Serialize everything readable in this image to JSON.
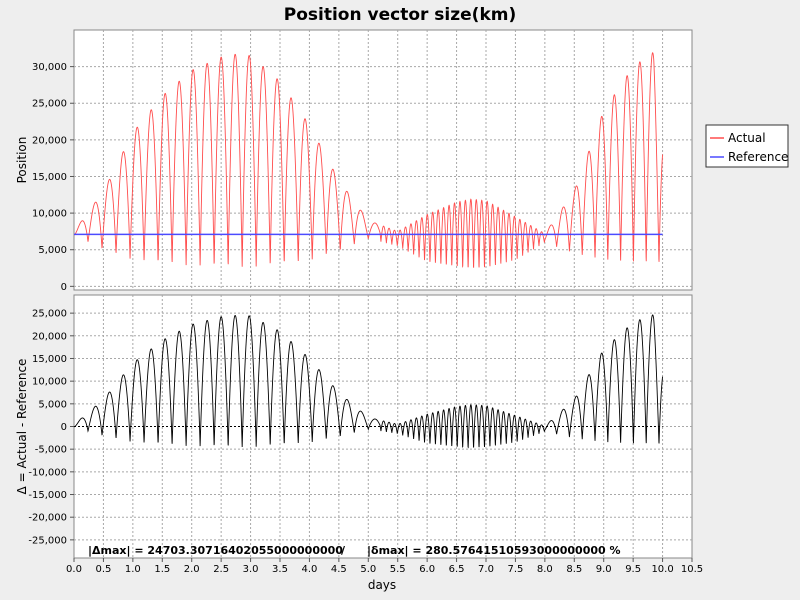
{
  "chart_data": [
    {
      "type": "line",
      "title": "Position vector size(km)",
      "ylabel": "Position",
      "xlabel": "",
      "xlim": [
        0,
        10.5
      ],
      "ylim": [
        -500,
        35000
      ],
      "x_ticks": [
        "0.0",
        "0.5",
        "1.0",
        "1.5",
        "2.0",
        "2.5",
        "3.0",
        "3.5",
        "4.0",
        "4.5",
        "5.0",
        "5.5",
        "6.0",
        "6.5",
        "7.0",
        "7.5",
        "8.0",
        "8.5",
        "9.0",
        "9.5",
        "10.0",
        "10.5"
      ],
      "y_ticks": [
        "0",
        "5,000",
        "10,000",
        "15,000",
        "20,000",
        "25,000",
        "30,000"
      ],
      "grid": true,
      "legend_position": "right",
      "series": [
        {
          "name": "Actual",
          "color": "#ff4d4d",
          "shape": "oscillating orbit radius",
          "x": [
            0.0,
            0.5,
            1.0,
            1.5,
            2.0,
            2.5,
            2.75,
            3.0,
            3.5,
            4.0,
            4.5,
            5.0,
            5.5,
            6.0,
            6.5,
            6.75,
            7.0,
            7.5,
            8.0,
            8.5,
            9.0,
            9.5,
            9.85,
            10.0
          ],
          "peak_y": [
            7500,
            13000,
            21000,
            26000,
            29500,
            31300,
            31700,
            31500,
            28000,
            22000,
            14500,
            9000,
            7500,
            9800,
            11500,
            11900,
            11700,
            9500,
            7200,
            13000,
            24000,
            30000,
            32000,
            22000
          ],
          "trough_y": [
            7000,
            5000,
            3600,
            3000,
            2700,
            2500,
            2400,
            2500,
            2800,
            3500,
            4800,
            6500,
            5500,
            3200,
            2300,
            2000,
            2200,
            3500,
            6000,
            4500,
            3500,
            3000,
            2900,
            2900
          ]
        },
        {
          "name": "Reference",
          "color": "#4b4bff",
          "x": [
            0.0,
            10.0
          ],
          "y": [
            7100,
            7100
          ]
        }
      ]
    },
    {
      "type": "line",
      "title": "",
      "ylabel": "Δ = Actual - Reference",
      "xlabel": "days",
      "xlim": [
        0,
        10.5
      ],
      "ylim": [
        -29000,
        29000
      ],
      "x_ticks": [
        "0.0",
        "0.5",
        "1.0",
        "1.5",
        "2.0",
        "2.5",
        "3.0",
        "3.5",
        "4.0",
        "4.5",
        "5.0",
        "5.5",
        "6.0",
        "6.5",
        "7.0",
        "7.5",
        "8.0",
        "8.5",
        "9.0",
        "9.5",
        "10.0",
        "10.5"
      ],
      "y_ticks": [
        "-25,000",
        "-20,000",
        "-15,000",
        "-10,000",
        "-5,000",
        "0",
        "5,000",
        "10,000",
        "15,000",
        "20,000",
        "25,000"
      ],
      "grid": true,
      "series": [
        {
          "name": "",
          "color": "#000000",
          "x": [
            0.0,
            0.5,
            1.0,
            1.5,
            2.0,
            2.5,
            2.75,
            3.0,
            3.5,
            4.0,
            4.5,
            5.0,
            5.5,
            6.0,
            6.5,
            6.75,
            7.0,
            7.5,
            8.0,
            8.5,
            9.0,
            9.5,
            9.85,
            10.0
          ],
          "peak_y": [
            400,
            6000,
            14000,
            19000,
            22500,
            24200,
            24500,
            24400,
            21000,
            15000,
            7500,
            2000,
            500,
            2700,
            4400,
            4800,
            4600,
            2400,
            100,
            6000,
            17000,
            23000,
            24700,
            15000
          ],
          "trough_y": [
            -100,
            -2100,
            -3500,
            -4100,
            -4500,
            -4700,
            -4800,
            -4700,
            -4300,
            -3600,
            -2300,
            -600,
            -1600,
            -3900,
            -4900,
            -5200,
            -4900,
            -3600,
            -1100,
            -2600,
            -3600,
            -4100,
            -4200,
            -4200
          ]
        }
      ],
      "annotation": {
        "dmax": "|Δmax| = 24703.30716402055000000000",
        "separator": "/",
        "rmax": "|δmax| = 280.57641510593000000000 %"
      }
    }
  ],
  "legend": {
    "items": [
      {
        "label": "Actual",
        "color": "#ff4d4d"
      },
      {
        "label": "Reference",
        "color": "#4b4bff"
      }
    ]
  }
}
